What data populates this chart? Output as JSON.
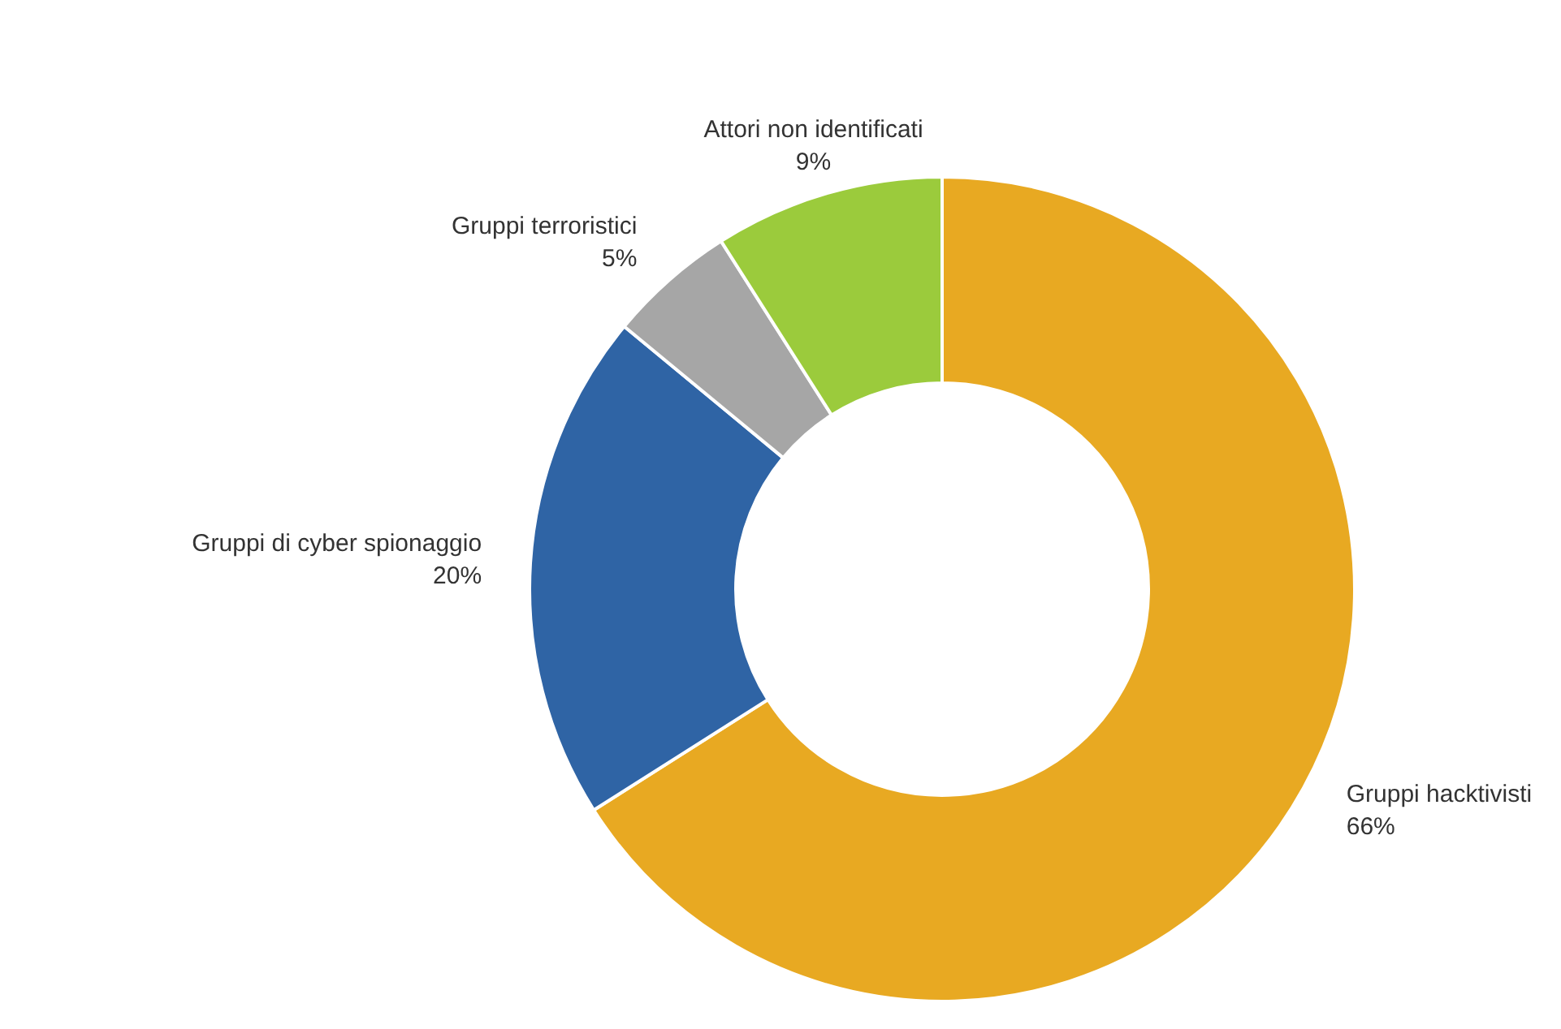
{
  "chart_data": {
    "type": "donut",
    "categories": [
      "Gruppi hacktivisti",
      "Gruppi di cyber spionaggio",
      "Gruppi terroristici",
      "Attori non identificati"
    ],
    "values": [
      66,
      20,
      5,
      9
    ],
    "colors": [
      "#e8a922",
      "#2f64a5",
      "#a6a6a6",
      "#9bcb3c"
    ],
    "value_labels": [
      "66%",
      "20%",
      "5%",
      "9%"
    ],
    "legend": false
  }
}
